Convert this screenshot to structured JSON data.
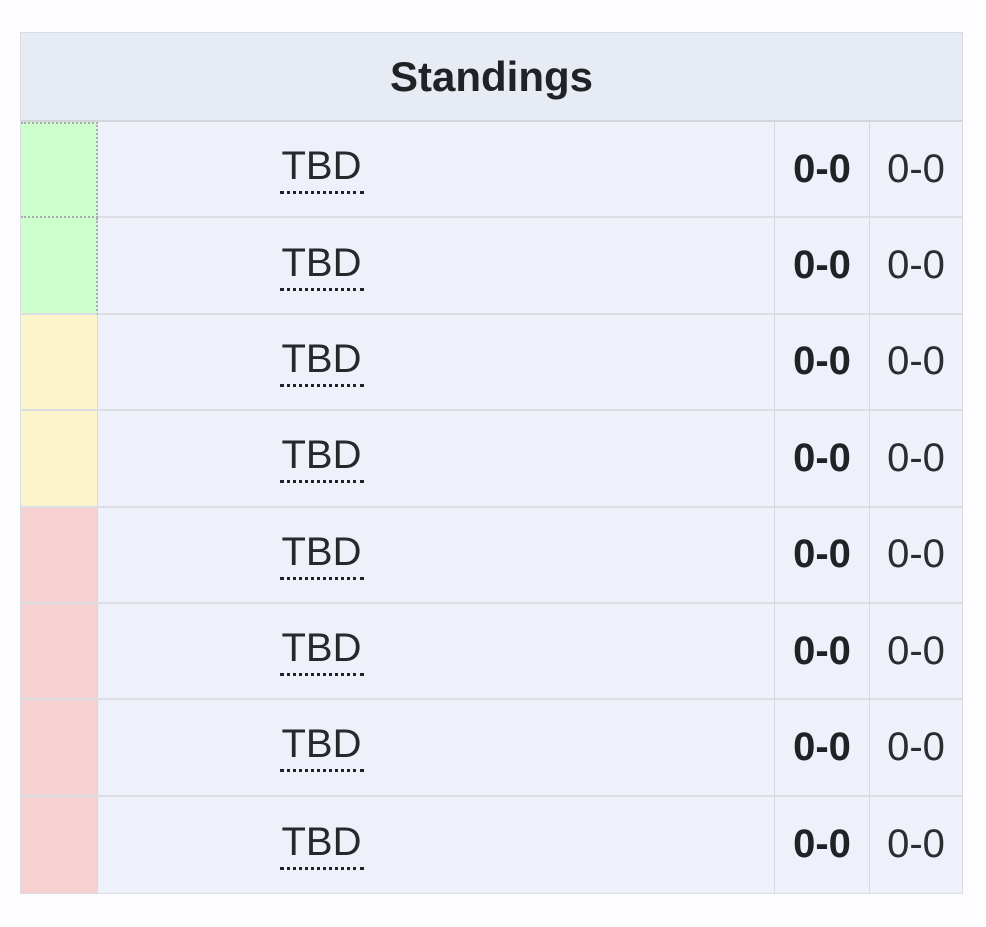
{
  "page": {
    "background_color": "#fdfdff"
  },
  "table": {
    "title": "Standings",
    "header_bg": "#e7ecf4",
    "row_bg": "#eef1f9",
    "border_color": "#d9dce1",
    "zone_colors": {
      "green": "#ccffcc",
      "yellow": "#fcf4ca",
      "red": "#f7d0d1"
    },
    "rows": [
      {
        "zone": "green",
        "team": "TBD",
        "match_record": "0-0",
        "game_record": "0-0"
      },
      {
        "zone": "green",
        "team": "TBD",
        "match_record": "0-0",
        "game_record": "0-0"
      },
      {
        "zone": "yellow",
        "team": "TBD",
        "match_record": "0-0",
        "game_record": "0-0"
      },
      {
        "zone": "yellow",
        "team": "TBD",
        "match_record": "0-0",
        "game_record": "0-0"
      },
      {
        "zone": "red",
        "team": "TBD",
        "match_record": "0-0",
        "game_record": "0-0"
      },
      {
        "zone": "red",
        "team": "TBD",
        "match_record": "0-0",
        "game_record": "0-0"
      },
      {
        "zone": "red",
        "team": "TBD",
        "match_record": "0-0",
        "game_record": "0-0"
      },
      {
        "zone": "red",
        "team": "TBD",
        "match_record": "0-0",
        "game_record": "0-0"
      }
    ]
  }
}
